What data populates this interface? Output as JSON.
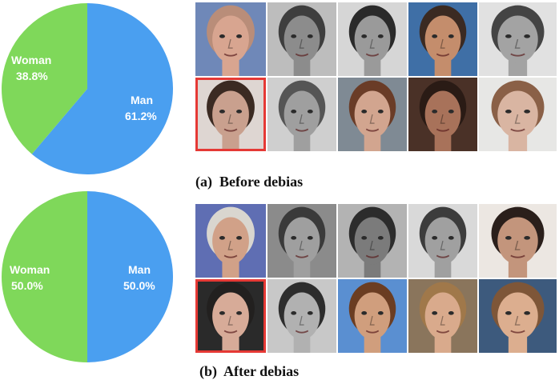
{
  "chart_data": [
    {
      "type": "pie",
      "title": "",
      "categories": [
        "Man",
        "Woman"
      ],
      "values": [
        61.2,
        38.8
      ],
      "labels": [
        {
          "name": "Man",
          "percent": "61.2%"
        },
        {
          "name": "Woman",
          "percent": "38.8%"
        }
      ],
      "colors": {
        "Man": "#4a9ff0",
        "Woman": "#7fd85a"
      }
    },
    {
      "type": "pie",
      "title": "",
      "categories": [
        "Man",
        "Woman"
      ],
      "values": [
        50.0,
        50.0
      ],
      "labels": [
        {
          "name": "Man",
          "percent": "50.0%"
        },
        {
          "name": "Woman",
          "percent": "50.0%"
        }
      ],
      "colors": {
        "Man": "#4a9ff0",
        "Woman": "#7fd85a"
      }
    }
  ],
  "panels": {
    "top": {
      "caption": "(a)  Before debias",
      "faces": [
        {
          "bg": "#6f88b8",
          "skin": "#d8a590",
          "hair": "#b98d79",
          "gray": false
        },
        {
          "bg": "#bdbdbd",
          "skin": "#8c8c8c",
          "hair": "#3e3e3e",
          "gray": true
        },
        {
          "bg": "#d6d6d6",
          "skin": "#9a9a9a",
          "hair": "#2a2a2a",
          "gray": true
        },
        {
          "bg": "#3f6fa6",
          "skin": "#c48d6c",
          "hair": "#3b2a22",
          "gray": false
        },
        {
          "bg": "#e1e1e1",
          "skin": "#a3a3a3",
          "hair": "#444444",
          "gray": true
        },
        {
          "bg": "#ded6d2",
          "skin": "#c9a08e",
          "hair": "#3b2a22",
          "gray": false,
          "highlight": true
        },
        {
          "bg": "#cfcfcf",
          "skin": "#9f9f9f",
          "hair": "#555555",
          "gray": true
        },
        {
          "bg": "#7f8a94",
          "skin": "#d2a58f",
          "hair": "#6a3c27",
          "gray": false
        },
        {
          "bg": "#4a3127",
          "skin": "#a8725a",
          "hair": "#2a1b15",
          "gray": false
        },
        {
          "bg": "#e7e7e5",
          "skin": "#d9b5a2",
          "hair": "#8a6047",
          "gray": false
        }
      ]
    },
    "bottom": {
      "caption": "(b)  After debias",
      "faces": [
        {
          "bg": "#5f6eb3",
          "skin": "#d1a188",
          "hair": "#d9d6cf",
          "gray": false
        },
        {
          "bg": "#8b8b8b",
          "skin": "#9f9f9f",
          "hair": "#3a3a3a",
          "gray": true
        },
        {
          "bg": "#b3b3b3",
          "skin": "#7b7b7b",
          "hair": "#2c2c2c",
          "gray": true
        },
        {
          "bg": "#d9d9d9",
          "skin": "#a0a0a0",
          "hair": "#3c3c3c",
          "gray": true
        },
        {
          "bg": "#ece7e2",
          "skin": "#c3957c",
          "hair": "#2a1f1b",
          "gray": false
        },
        {
          "bg": "#2a2a2a",
          "skin": "#d7ab98",
          "hair": "#22201f",
          "gray": false,
          "highlight": true
        },
        {
          "bg": "#c8c8c8",
          "skin": "#b1b1b1",
          "hair": "#2d2d2d",
          "gray": true
        },
        {
          "bg": "#5a8fd1",
          "skin": "#d09e7d",
          "hair": "#6b3d22",
          "gray": false
        },
        {
          "bg": "#8a755c",
          "skin": "#d9aa8c",
          "hair": "#a0784a",
          "gray": false
        },
        {
          "bg": "#3d5a7d",
          "skin": "#dcae8f",
          "hair": "#7e5638",
          "gray": false
        }
      ]
    }
  }
}
